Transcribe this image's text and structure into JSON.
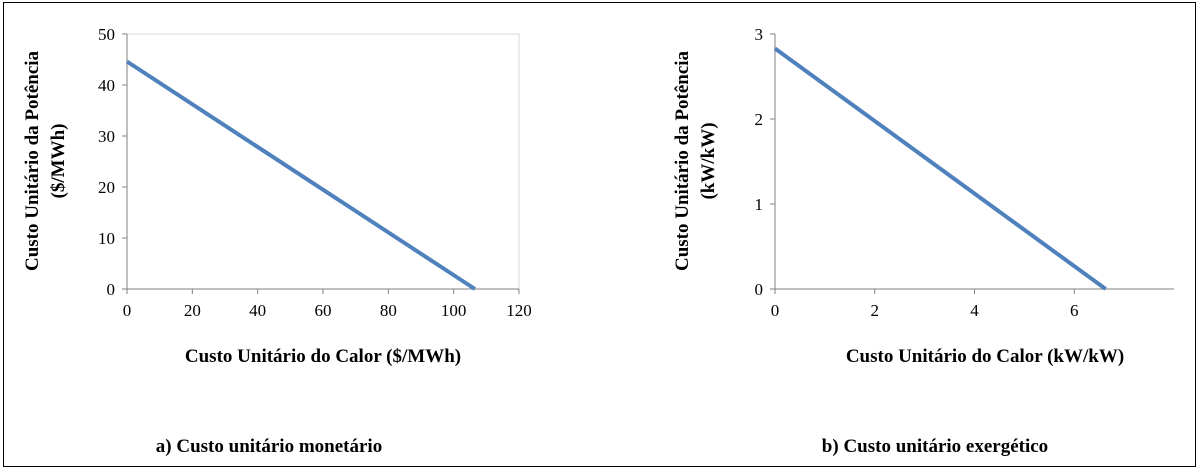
{
  "chart_data": [
    {
      "type": "line",
      "caption": "a) Custo unitário monetário",
      "xlabel": "Custo Unitário do Calor ($/MWh)",
      "ylabel_lines": [
        "Custo Unitário da Potência",
        "($/MWh)"
      ],
      "xlim": [
        0,
        120
      ],
      "ylim": [
        0,
        50
      ],
      "xticks": [
        0,
        20,
        40,
        60,
        80,
        100,
        120
      ],
      "yticks": [
        0,
        10,
        20,
        30,
        40,
        50
      ],
      "grid": false,
      "series": [
        {
          "color": "#4F81BD",
          "x": [
            0,
            106.5
          ],
          "y": [
            44.6,
            0
          ]
        }
      ]
    },
    {
      "type": "line",
      "caption": "b) Custo unitário exergético",
      "xlabel": "Custo Unitário do Calor  (kW/kW)",
      "ylabel_lines": [
        "Custo Unitário da Potência",
        "(kW/kW)"
      ],
      "xlim": [
        0,
        8
      ],
      "ylim": [
        0,
        3
      ],
      "xticks": [
        0,
        2,
        4,
        6
      ],
      "yticks": [
        0,
        1,
        2,
        3
      ],
      "grid": false,
      "series": [
        {
          "color": "#4F81BD",
          "x": [
            0,
            6.63
          ],
          "y": [
            2.83,
            0
          ]
        }
      ]
    }
  ]
}
